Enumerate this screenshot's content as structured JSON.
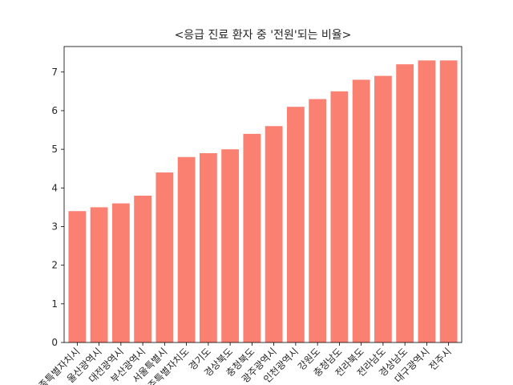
{
  "chart_data": {
    "type": "bar",
    "title": "<응급 진료 환자 중 '전원'되는 비율>",
    "xlabel": "",
    "ylabel": "",
    "categories": [
      "세종특별자치시",
      "울산광역시",
      "대전광역시",
      "부산광역시",
      "서울특별시",
      "제주특별자치도",
      "경기도",
      "경상북도",
      "충청북도",
      "광주광역시",
      "인천광역시",
      "강원도",
      "충청남도",
      "전라북도",
      "전라남도",
      "경상남도",
      "대구광역시",
      "전주시"
    ],
    "values": [
      3.4,
      3.5,
      3.6,
      3.8,
      4.4,
      4.8,
      4.9,
      5.0,
      5.4,
      5.6,
      6.1,
      6.3,
      6.5,
      6.8,
      6.9,
      7.2,
      7.3,
      7.3
    ],
    "ylim": [
      0,
      7.66
    ],
    "yticks": [
      0,
      1,
      2,
      3,
      4,
      5,
      6,
      7
    ],
    "bar_color": "#fa8072",
    "grid": false
  }
}
